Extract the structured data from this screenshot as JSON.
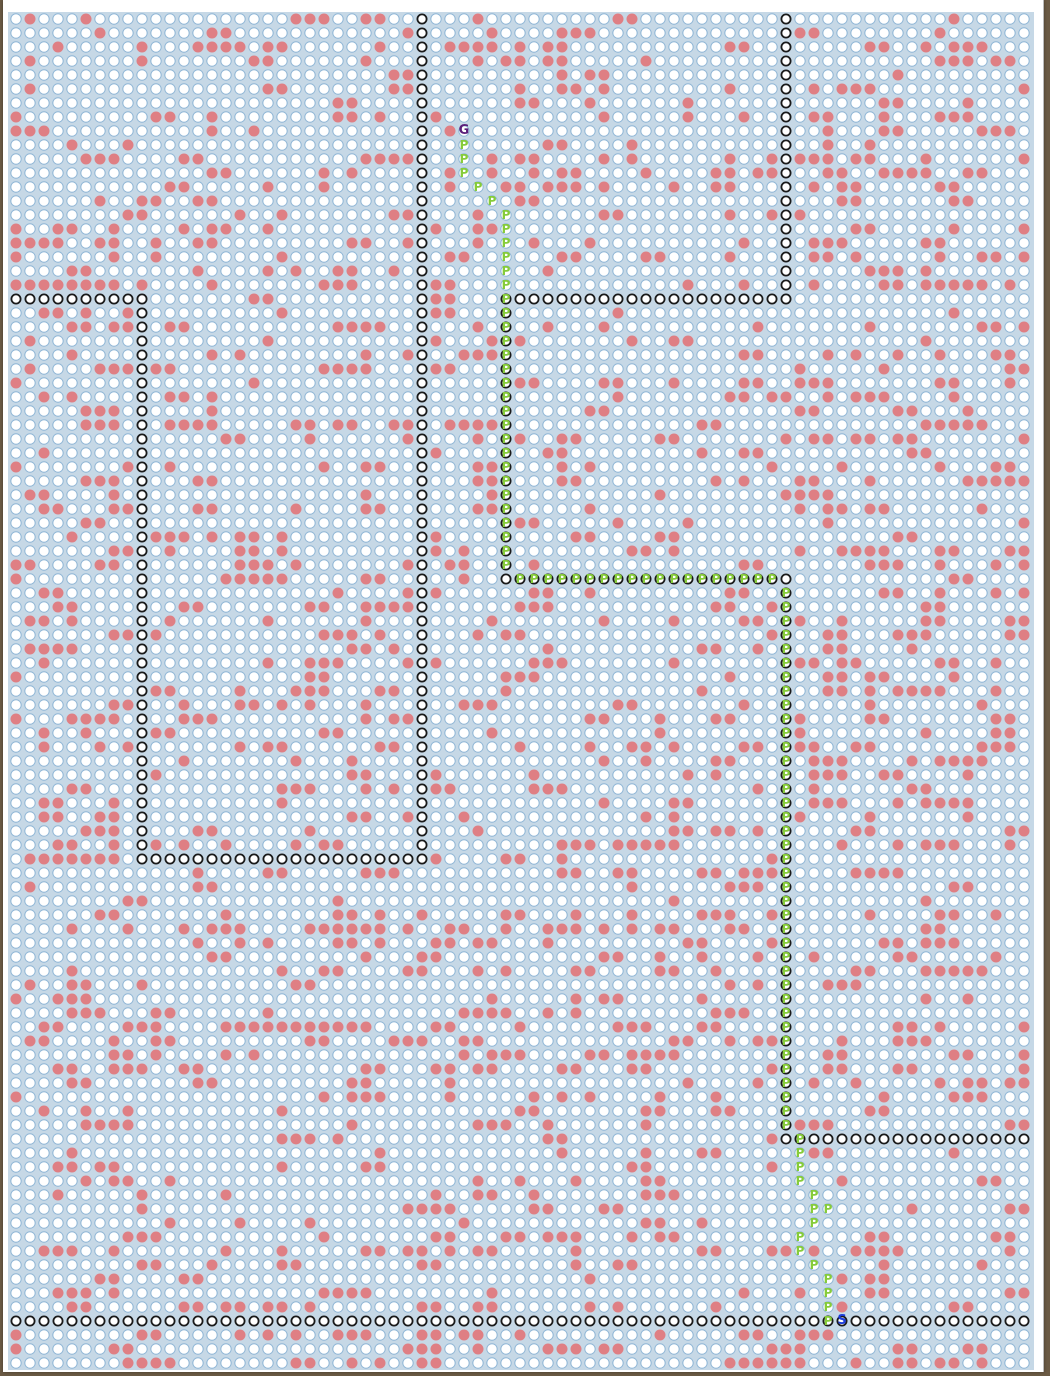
{
  "board": {
    "cols": 73,
    "rows": 97,
    "colors": {
      "background": "#c6d8e6",
      "open_cell_fill": "#ffffff",
      "open_cell_stroke": "#8fb6d6",
      "obstacle": "#df7f84",
      "wall_fill": "#ffffff",
      "wall_stroke": "#1a1a1a",
      "path_marker": "#86cc3a",
      "goal_marker": "#5a1d7a",
      "start_marker": "#1d3ddb"
    }
  },
  "markers": {
    "goal": {
      "label": "G",
      "col": 32,
      "row": 8
    },
    "start": {
      "label": "S",
      "col": 59,
      "row": 93
    },
    "path_label": "P",
    "path_cells": [
      [
        32,
        9
      ],
      [
        32,
        10
      ],
      [
        32,
        11
      ],
      [
        33,
        12
      ],
      [
        34,
        13
      ],
      [
        35,
        14
      ],
      [
        35,
        15
      ],
      [
        35,
        16
      ],
      [
        35,
        17
      ],
      [
        35,
        18
      ],
      [
        35,
        19
      ],
      [
        35,
        20
      ],
      [
        35,
        21
      ],
      [
        35,
        22
      ],
      [
        35,
        23
      ],
      [
        35,
        24
      ],
      [
        35,
        25
      ],
      [
        35,
        26
      ],
      [
        35,
        27
      ],
      [
        35,
        28
      ],
      [
        35,
        29
      ],
      [
        35,
        30
      ],
      [
        35,
        31
      ],
      [
        35,
        32
      ],
      [
        35,
        33
      ],
      [
        35,
        34
      ],
      [
        35,
        35
      ],
      [
        35,
        36
      ],
      [
        35,
        37
      ],
      [
        35,
        38
      ],
      [
        35,
        39
      ],
      [
        36,
        40
      ],
      [
        37,
        40
      ],
      [
        38,
        40
      ],
      [
        39,
        40
      ],
      [
        40,
        40
      ],
      [
        41,
        40
      ],
      [
        42,
        40
      ],
      [
        43,
        40
      ],
      [
        44,
        40
      ],
      [
        45,
        40
      ],
      [
        46,
        40
      ],
      [
        47,
        40
      ],
      [
        48,
        40
      ],
      [
        49,
        40
      ],
      [
        50,
        40
      ],
      [
        51,
        40
      ],
      [
        52,
        40
      ],
      [
        53,
        40
      ],
      [
        54,
        40
      ],
      [
        55,
        41
      ],
      [
        55,
        42
      ],
      [
        55,
        43
      ],
      [
        55,
        44
      ],
      [
        55,
        45
      ],
      [
        55,
        46
      ],
      [
        55,
        47
      ],
      [
        55,
        48
      ],
      [
        55,
        49
      ],
      [
        55,
        50
      ],
      [
        55,
        51
      ],
      [
        55,
        52
      ],
      [
        55,
        53
      ],
      [
        55,
        54
      ],
      [
        55,
        55
      ],
      [
        55,
        56
      ],
      [
        55,
        57
      ],
      [
        55,
        58
      ],
      [
        55,
        59
      ],
      [
        55,
        60
      ],
      [
        55,
        61
      ],
      [
        55,
        62
      ],
      [
        55,
        63
      ],
      [
        55,
        64
      ],
      [
        55,
        65
      ],
      [
        55,
        66
      ],
      [
        55,
        67
      ],
      [
        55,
        68
      ],
      [
        55,
        69
      ],
      [
        55,
        70
      ],
      [
        55,
        71
      ],
      [
        55,
        72
      ],
      [
        55,
        73
      ],
      [
        55,
        74
      ],
      [
        55,
        75
      ],
      [
        55,
        76
      ],
      [
        55,
        77
      ],
      [
        55,
        78
      ],
      [
        55,
        79
      ],
      [
        56,
        80
      ],
      [
        56,
        81
      ],
      [
        56,
        82
      ],
      [
        56,
        83
      ],
      [
        57,
        84
      ],
      [
        57,
        85
      ],
      [
        58,
        85
      ],
      [
        57,
        86
      ],
      [
        56,
        87
      ],
      [
        56,
        88
      ],
      [
        57,
        89
      ],
      [
        58,
        90
      ],
      [
        58,
        91
      ],
      [
        58,
        92
      ],
      [
        58,
        93
      ]
    ]
  },
  "walls": [
    {
      "orientation": "vertical",
      "col": 29,
      "from_row": 0,
      "to_row": 60
    },
    {
      "orientation": "vertical",
      "col": 55,
      "from_row": 0,
      "to_row": 20
    },
    {
      "orientation": "horizontal",
      "row": 20,
      "from_col": 0,
      "to_col": 9
    },
    {
      "orientation": "vertical",
      "col": 9,
      "from_row": 20,
      "to_row": 60
    },
    {
      "orientation": "horizontal",
      "row": 60,
      "from_col": 9,
      "to_col": 29
    },
    {
      "orientation": "horizontal",
      "row": 20,
      "from_col": 35,
      "to_col": 55
    },
    {
      "orientation": "vertical",
      "col": 35,
      "from_row": 20,
      "to_row": 40
    },
    {
      "orientation": "horizontal",
      "row": 40,
      "from_col": 35,
      "to_col": 55
    },
    {
      "orientation": "vertical",
      "col": 55,
      "from_row": 40,
      "to_row": 80
    },
    {
      "orientation": "horizontal",
      "row": 80,
      "from_col": 55,
      "to_col": 72
    },
    {
      "orientation": "horizontal",
      "row": 93,
      "from_col": 0,
      "to_col": 72
    }
  ],
  "obstacle_density": 0.16
}
